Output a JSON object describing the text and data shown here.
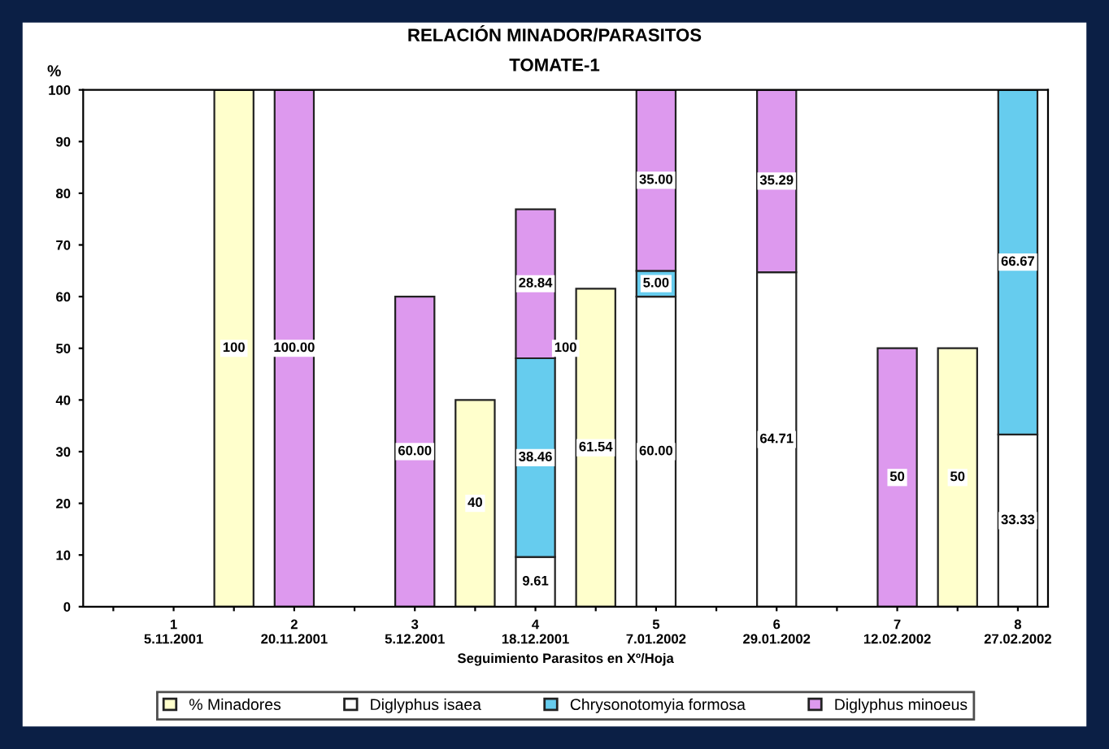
{
  "chart_data": {
    "type": "bar",
    "stacked": true,
    "title": "RELACIÓN MINADOR/PARASITOS",
    "subtitle": "TOMATE-1",
    "ylabel": "%",
    "xlabel": "Seguimiento Parasitos en Xº/Hoja",
    "categories": [
      null,
      "1\n5.11.2001",
      null,
      "2\n20.11.2001",
      null,
      "3\n5.12.2001",
      null,
      "4\n18.12.2001",
      null,
      "5\n7.01.2002",
      null,
      "6\n29.01.2002",
      null,
      "7\n12.02.2002",
      null,
      "8\n27.02.2002"
    ],
    "series": [
      {
        "name": "% Minadores",
        "color": "#ffffcc",
        "values": [
          null,
          null,
          100,
          null,
          null,
          null,
          40,
          null,
          61.54,
          null,
          null,
          null,
          null,
          null,
          50,
          null
        ],
        "value_labels": [
          null,
          null,
          "100",
          null,
          null,
          null,
          "40",
          null,
          "61.54",
          null,
          null,
          null,
          null,
          null,
          "50",
          null
        ]
      },
      {
        "name": "Diglyphus isaea",
        "color": "#ffffff",
        "values": [
          null,
          null,
          null,
          null,
          null,
          null,
          null,
          9.61,
          null,
          60,
          null,
          64.71,
          null,
          null,
          null,
          33.33
        ],
        "value_labels": [
          null,
          null,
          null,
          null,
          null,
          null,
          null,
          "9.61",
          null,
          "60.00",
          null,
          "64.71",
          null,
          null,
          null,
          "33.33"
        ]
      },
      {
        "name": "Chrysonotomyia formosa",
        "color": "#66ccee",
        "values": [
          null,
          null,
          null,
          null,
          null,
          null,
          null,
          38.46,
          null,
          5,
          null,
          null,
          null,
          null,
          null,
          66.67
        ],
        "value_labels": [
          null,
          null,
          null,
          null,
          null,
          null,
          null,
          "38.46",
          null,
          "5.00",
          null,
          null,
          null,
          null,
          null,
          "66.67"
        ]
      },
      {
        "name": "Diglyphus minoeus",
        "color": "#dd99ee",
        "values": [
          null,
          null,
          null,
          100,
          null,
          60,
          null,
          28.84,
          null,
          35,
          null,
          35.29,
          null,
          50,
          null,
          null
        ],
        "value_labels": [
          null,
          null,
          null,
          "100.00",
          null,
          "60.00",
          null,
          "28.84",
          null,
          "35.00",
          null,
          "35.29",
          null,
          "50",
          null,
          null
        ]
      }
    ],
    "annotations": [
      "100"
    ],
    "ylim": [
      0,
      100
    ],
    "yticks": [
      0,
      10,
      20,
      30,
      40,
      50,
      60,
      70,
      80,
      90,
      100
    ],
    "legend": "bottom"
  }
}
